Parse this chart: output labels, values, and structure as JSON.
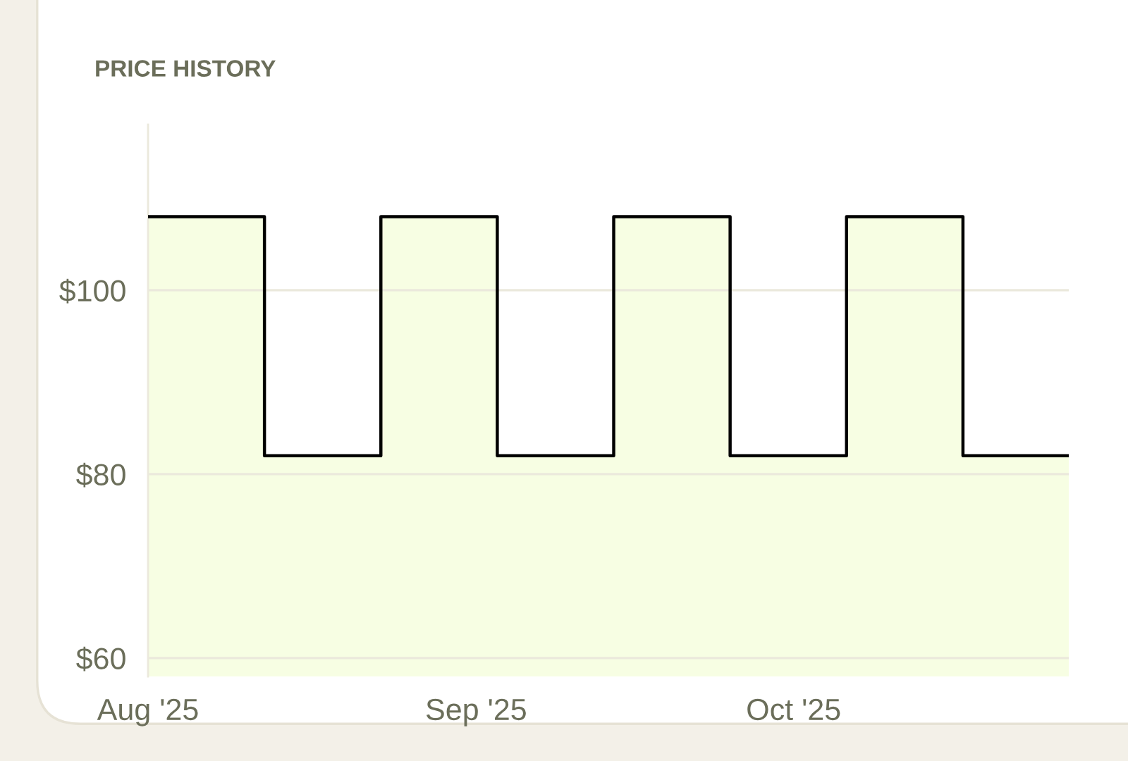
{
  "chart_data": {
    "type": "area",
    "title": "PRICE HISTORY",
    "x": [
      "2025-08-01",
      "2025-08-12",
      "2025-08-12",
      "2025-08-23",
      "2025-08-23",
      "2025-09-03",
      "2025-09-03",
      "2025-09-14",
      "2025-09-14",
      "2025-09-25",
      "2025-09-25",
      "2025-10-06",
      "2025-10-06",
      "2025-10-17",
      "2025-10-17",
      "2025-10-27"
    ],
    "series": [
      {
        "color": "#000000",
        "values": [
          108,
          108,
          82,
          82,
          108,
          108,
          82,
          82,
          108,
          108,
          82,
          82,
          108,
          108,
          82,
          82
        ]
      }
    ],
    "xlim": [
      "2025-08-01",
      "2025-10-27"
    ],
    "xticks": [
      {
        "value": "2025-08-01",
        "label": "Aug '25"
      },
      {
        "value": "2025-09-01",
        "label": "Sep '25"
      },
      {
        "value": "2025-10-01",
        "label": "Oct '25"
      }
    ],
    "ylim": [
      58,
      118
    ],
    "yticks": [
      {
        "value": 60,
        "label": "$60"
      },
      {
        "value": 80,
        "label": "$80"
      },
      {
        "value": 100,
        "label": "$100"
      }
    ],
    "grid": "y"
  }
}
